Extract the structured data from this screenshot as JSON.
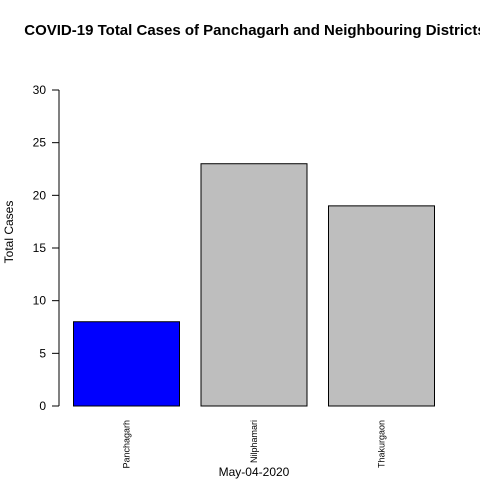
{
  "chart_data": {
    "type": "bar",
    "title": "COVID-19 Total Cases of Panchagarh and Neighbouring Districts",
    "xlabel": "May-04-2020",
    "ylabel": "Total Cases",
    "categories": [
      "Panchagarh",
      "Nilphamari",
      "Thakurgaon"
    ],
    "values": [
      8,
      23,
      19
    ],
    "bar_colors": [
      "#0000ff",
      "#bebebe",
      "#bebebe"
    ],
    "ylim": [
      0,
      30
    ],
    "yticks": [
      0,
      5,
      10,
      15,
      20,
      25,
      30
    ],
    "grid": false,
    "legend": "none"
  }
}
